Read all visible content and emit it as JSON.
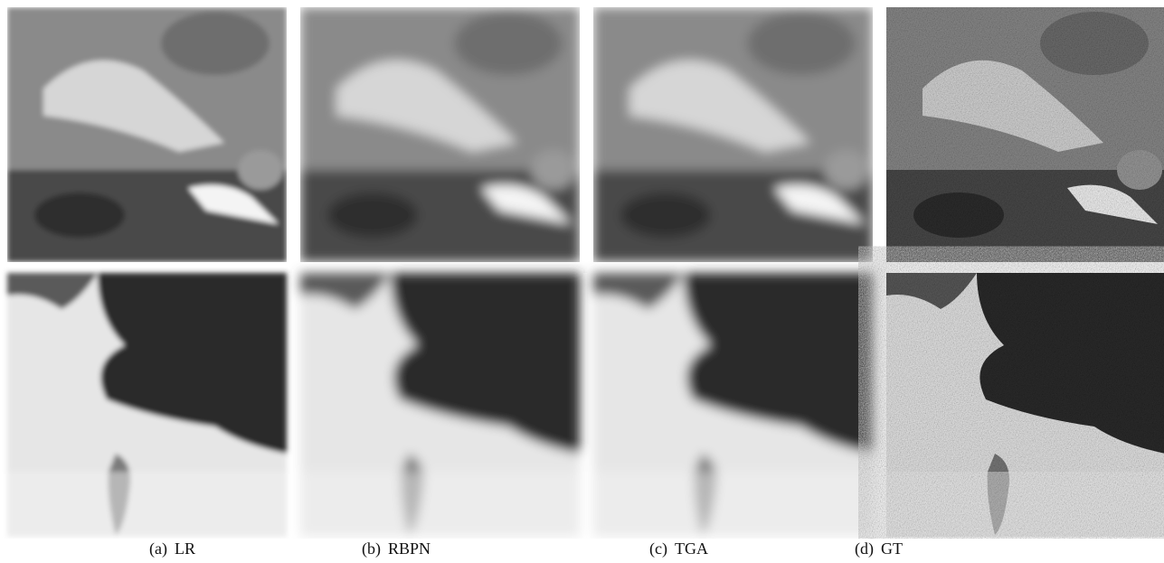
{
  "captions": [
    {
      "label": "(a)",
      "text": "LR"
    },
    {
      "label": "(b)",
      "text": "RBPN"
    },
    {
      "label": "(c)",
      "text": "TGA"
    },
    {
      "label": "(d)",
      "text": "GT"
    }
  ]
}
